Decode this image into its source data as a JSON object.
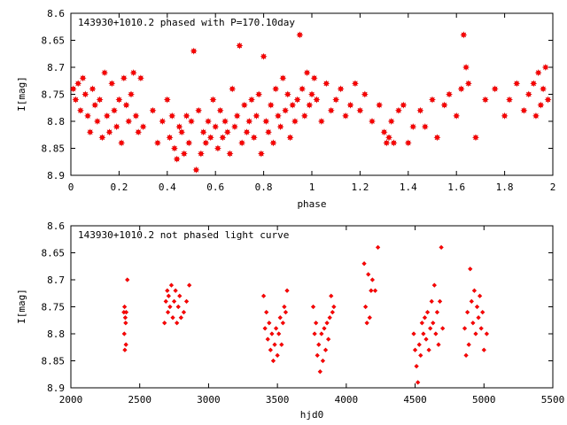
{
  "chart_data": [
    {
      "type": "scatter",
      "title": "143930+1010.2 phased with P=170.10day",
      "xlabel": "phase",
      "ylabel": "I[mag]",
      "xlim": [
        0,
        2
      ],
      "ylim": [
        8.6,
        8.9
      ],
      "y_inverted": true,
      "xticks": [
        0,
        0.2,
        0.4,
        0.6,
        0.8,
        1,
        1.2,
        1.4,
        1.6,
        1.8,
        2
      ],
      "xtick_labels": [
        "0",
        "0.2",
        "0.4",
        "0.6",
        "0.8",
        "1",
        "1.2",
        "1.4",
        "1.6",
        "1.8",
        "2"
      ],
      "yticks": [
        8.6,
        8.65,
        8.7,
        8.75,
        8.8,
        8.85,
        8.9
      ],
      "ytick_labels": [
        "8.6",
        "8.65",
        "8.7",
        "8.75",
        "8.8",
        "8.85",
        "8.9"
      ],
      "grid": false,
      "marker_color": "#ff0000",
      "marker": "star",
      "x": [
        0.01,
        0.02,
        0.03,
        0.04,
        0.05,
        0.06,
        0.07,
        0.08,
        0.09,
        0.1,
        0.11,
        0.12,
        0.13,
        0.14,
        0.15,
        0.16,
        0.17,
        0.18,
        0.19,
        0.2,
        0.21,
        0.22,
        0.23,
        0.24,
        0.25,
        0.26,
        0.27,
        0.28,
        0.29,
        0.3,
        0.34,
        0.36,
        0.38,
        0.4,
        0.41,
        0.42,
        0.43,
        0.44,
        0.45,
        0.46,
        0.47,
        0.48,
        0.49,
        0.5,
        0.51,
        0.52,
        0.53,
        0.54,
        0.55,
        0.56,
        0.57,
        0.58,
        0.59,
        0.6,
        0.61,
        0.62,
        0.63,
        0.64,
        0.65,
        0.66,
        0.67,
        0.68,
        0.69,
        0.7,
        0.71,
        0.72,
        0.73,
        0.74,
        0.75,
        0.76,
        0.77,
        0.78,
        0.79,
        0.8,
        0.81,
        0.82,
        0.83,
        0.84,
        0.85,
        0.86,
        0.87,
        0.88,
        0.89,
        0.9,
        0.91,
        0.92,
        0.93,
        0.94,
        0.95,
        0.96,
        0.97,
        0.98,
        0.99,
        1.0,
        1.01,
        1.02,
        1.04,
        1.06,
        1.08,
        1.1,
        1.12,
        1.14,
        1.16,
        1.18,
        1.2,
        1.22,
        1.25,
        1.28,
        1.3,
        1.31,
        1.32,
        1.33,
        1.34,
        1.36,
        1.38,
        1.4,
        1.42,
        1.45,
        1.47,
        1.5,
        1.52,
        1.55,
        1.57,
        1.6,
        1.62,
        1.63,
        1.64,
        1.65,
        1.68,
        1.72,
        1.76,
        1.8,
        1.82,
        1.85,
        1.88,
        1.9,
        1.92,
        1.93,
        1.94,
        1.95,
        1.96,
        1.97,
        1.98
      ],
      "y": [
        8.74,
        8.76,
        8.73,
        8.78,
        8.72,
        8.75,
        8.79,
        8.82,
        8.74,
        8.77,
        8.8,
        8.76,
        8.83,
        8.71,
        8.79,
        8.82,
        8.73,
        8.78,
        8.81,
        8.76,
        8.84,
        8.72,
        8.77,
        8.8,
        8.75,
        8.71,
        8.79,
        8.82,
        8.72,
        8.81,
        8.78,
        8.84,
        8.8,
        8.76,
        8.83,
        8.79,
        8.85,
        8.87,
        8.81,
        8.82,
        8.86,
        8.79,
        8.84,
        8.8,
        8.67,
        8.89,
        8.78,
        8.86,
        8.82,
        8.84,
        8.8,
        8.83,
        8.76,
        8.81,
        8.85,
        8.78,
        8.83,
        8.8,
        8.82,
        8.86,
        8.74,
        8.81,
        8.79,
        8.66,
        8.84,
        8.77,
        8.82,
        8.8,
        8.76,
        8.83,
        8.79,
        8.75,
        8.86,
        8.68,
        8.8,
        8.82,
        8.77,
        8.84,
        8.74,
        8.79,
        8.81,
        8.72,
        8.78,
        8.75,
        8.83,
        8.77,
        8.8,
        8.76,
        8.64,
        8.74,
        8.79,
        8.71,
        8.77,
        8.75,
        8.72,
        8.76,
        8.8,
        8.73,
        8.78,
        8.76,
        8.74,
        8.79,
        8.77,
        8.73,
        8.78,
        8.75,
        8.8,
        8.77,
        8.82,
        8.84,
        8.83,
        8.8,
        8.84,
        8.78,
        8.77,
        8.84,
        8.81,
        8.78,
        8.81,
        8.76,
        8.83,
        8.77,
        8.75,
        8.79,
        8.74,
        8.64,
        8.7,
        8.73,
        8.83,
        8.76,
        8.74,
        8.79,
        8.76,
        8.73,
        8.78,
        8.75,
        8.73,
        8.79,
        8.71,
        8.77,
        8.74,
        8.7,
        8.76
      ]
    },
    {
      "type": "scatter",
      "title": "143930+1010.2 not phased light curve",
      "xlabel": "hjd0",
      "ylabel": "I[mag]",
      "xlim": [
        2000,
        5500
      ],
      "ylim": [
        8.6,
        8.9
      ],
      "y_inverted": true,
      "xticks": [
        2000,
        2500,
        3000,
        3500,
        4000,
        4500,
        5000,
        5500
      ],
      "xtick_labels": [
        "2000",
        "2500",
        "3000",
        "3500",
        "4000",
        "4500",
        "5000",
        "5500"
      ],
      "yticks": [
        8.6,
        8.65,
        8.7,
        8.75,
        8.8,
        8.85,
        8.9
      ],
      "ytick_labels": [
        "8.6",
        "8.65",
        "8.7",
        "8.75",
        "8.8",
        "8.85",
        "8.9"
      ],
      "grid": false,
      "marker_color": "#ff0000",
      "marker": "diamond",
      "x": [
        2385,
        2388,
        2390,
        2392,
        2395,
        2398,
        2400,
        2402,
        2410,
        2680,
        2690,
        2700,
        2705,
        2710,
        2720,
        2730,
        2740,
        2750,
        2760,
        2770,
        2780,
        2790,
        2800,
        2820,
        2840,
        2860,
        3400,
        3410,
        3420,
        3430,
        3440,
        3450,
        3460,
        3470,
        3480,
        3490,
        3500,
        3510,
        3520,
        3530,
        3540,
        3550,
        3560,
        3570,
        3760,
        3770,
        3780,
        3790,
        3800,
        3810,
        3820,
        3830,
        3840,
        3850,
        3860,
        3870,
        3880,
        3890,
        3900,
        3910,
        4130,
        4140,
        4150,
        4160,
        4170,
        4180,
        4190,
        4210,
        4230,
        4490,
        4500,
        4510,
        4520,
        4530,
        4540,
        4550,
        4560,
        4570,
        4580,
        4590,
        4600,
        4610,
        4620,
        4630,
        4640,
        4650,
        4660,
        4670,
        4680,
        4690,
        4700,
        4860,
        4870,
        4880,
        4890,
        4900,
        4910,
        4920,
        4930,
        4940,
        4950,
        4960,
        4970,
        4980,
        4990,
        5000,
        5020
      ],
      "y": [
        8.76,
        8.8,
        8.75,
        8.83,
        8.77,
        8.78,
        8.82,
        8.76,
        8.7,
        8.78,
        8.74,
        8.72,
        8.76,
        8.73,
        8.75,
        8.71,
        8.77,
        8.74,
        8.72,
        8.78,
        8.75,
        8.73,
        8.77,
        8.76,
        8.74,
        8.71,
        8.73,
        8.79,
        8.76,
        8.81,
        8.78,
        8.83,
        8.8,
        8.85,
        8.82,
        8.79,
        8.84,
        8.8,
        8.77,
        8.82,
        8.78,
        8.75,
        8.76,
        8.72,
        8.75,
        8.8,
        8.78,
        8.84,
        8.82,
        8.87,
        8.8,
        8.85,
        8.79,
        8.83,
        8.78,
        8.81,
        8.77,
        8.73,
        8.76,
        8.75,
        8.67,
        8.75,
        8.78,
        8.69,
        8.77,
        8.72,
        8.7,
        8.72,
        8.64,
        8.8,
        8.83,
        8.86,
        8.89,
        8.82,
        8.84,
        8.78,
        8.8,
        8.77,
        8.81,
        8.76,
        8.83,
        8.79,
        8.74,
        8.78,
        8.71,
        8.8,
        8.76,
        8.82,
        8.74,
        8.64,
        8.79,
        8.79,
        8.84,
        8.76,
        8.82,
        8.68,
        8.74,
        8.78,
        8.72,
        8.8,
        8.75,
        8.77,
        8.73,
        8.79,
        8.76,
        8.83,
        8.8
      ]
    }
  ]
}
